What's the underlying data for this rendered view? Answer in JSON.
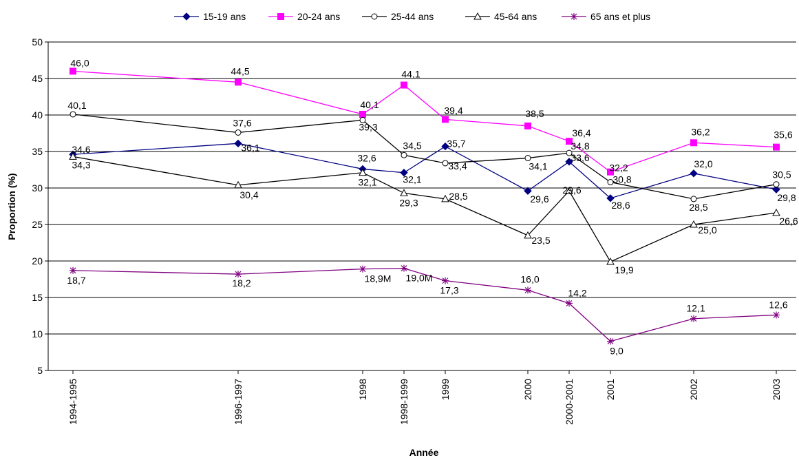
{
  "chart_data": {
    "type": "line",
    "title": "",
    "xlabel": "Année",
    "ylabel": "Proportion (%)",
    "ylim": [
      5,
      50
    ],
    "yticks": [
      "5",
      "10",
      "15",
      "20",
      "25",
      "30",
      "35",
      "40",
      "45",
      "50"
    ],
    "grid": "horizontal",
    "legend_position": "top",
    "categories": [
      "1994-1995",
      "1996-1997",
      "1998",
      "1998-1999",
      "1999",
      "2000",
      "2000-2001",
      "2001",
      "2002",
      "2003"
    ],
    "series": [
      {
        "name": "15-19 ans",
        "color": "#000080",
        "marker": "diamond",
        "values": [
          34.6,
          36.1,
          32.6,
          32.1,
          35.7,
          29.6,
          33.6,
          28.6,
          32.0,
          29.8
        ],
        "labels": [
          "34,6",
          "36,1",
          "32,6",
          "32,1",
          "35,7",
          "29,6",
          "33,6",
          "28,6",
          "32,0",
          "29,8"
        ]
      },
      {
        "name": "20-24 ans",
        "color": "#ff00ff",
        "marker": "square",
        "values": [
          46.0,
          44.5,
          40.1,
          44.1,
          39.4,
          38.5,
          36.4,
          32.2,
          36.2,
          35.6
        ],
        "labels": [
          "46,0",
          "44,5",
          "40,1",
          "44,1",
          "39,4",
          "38,5",
          "36,4",
          "32,2",
          "36,2",
          "35,6"
        ]
      },
      {
        "name": "25-44 ans",
        "color": "#000000",
        "marker": "circle",
        "values": [
          40.1,
          37.6,
          39.3,
          34.5,
          33.4,
          34.1,
          34.8,
          30.8,
          28.5,
          30.5
        ],
        "labels": [
          "40,1",
          "37,6",
          "39,3",
          "34,5",
          "33,4",
          "34,1",
          "34,8",
          "30,8",
          "28,5",
          "30,5"
        ]
      },
      {
        "name": "45-64 ans",
        "color": "#000000",
        "marker": "triangle",
        "values": [
          34.3,
          30.4,
          32.1,
          29.3,
          28.5,
          23.5,
          29.6,
          19.9,
          25.0,
          26.6
        ],
        "labels": [
          "34,3",
          "30,4",
          "32,1",
          "29,3",
          "28,5",
          "23,5",
          "29,6",
          "19,9",
          "25,0",
          "26,6"
        ]
      },
      {
        "name": "65 ans et plus",
        "color": "#800080",
        "marker": "star",
        "values": [
          18.7,
          18.2,
          18.9,
          19.0,
          17.3,
          16.0,
          14.2,
          9.0,
          12.1,
          12.6
        ],
        "labels": [
          "18,7",
          "18,2",
          "18,9M",
          "19,0M",
          "17,3",
          "16,0",
          "14,2",
          "9,0",
          "12,1",
          "12,6"
        ]
      }
    ]
  }
}
